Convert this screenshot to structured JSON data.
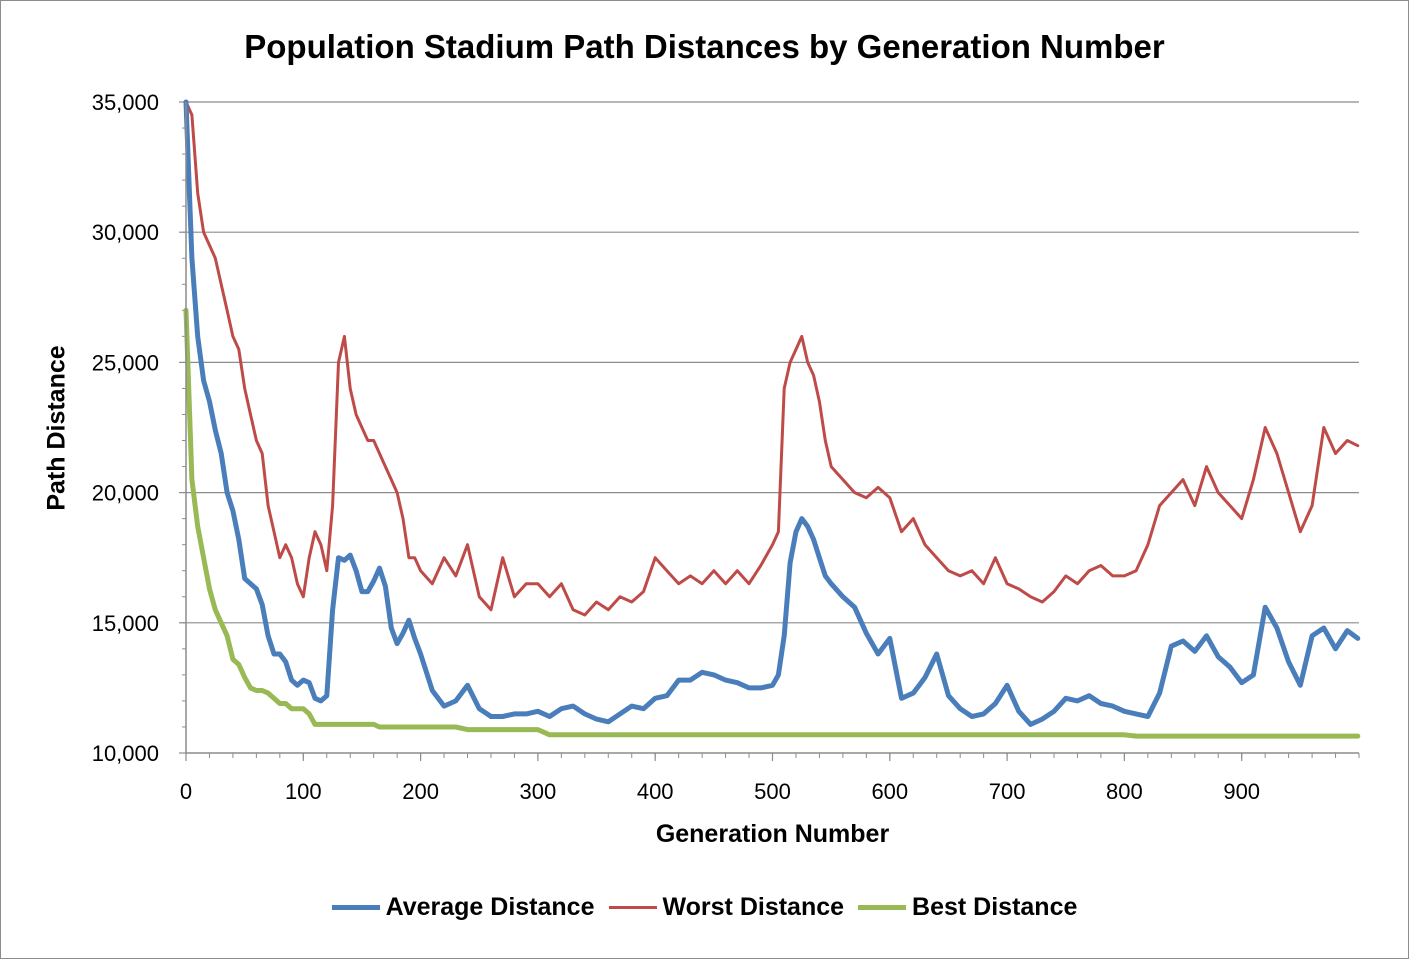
{
  "chart_data": {
    "type": "line",
    "title": "Population Stadium Path Distances by Generation Number",
    "xlabel": "Generation Number",
    "ylabel": "Path Distance",
    "xlim": [
      0,
      1000
    ],
    "ylim": [
      10000,
      35000
    ],
    "x_ticks": [
      0,
      100,
      200,
      300,
      400,
      500,
      600,
      700,
      800,
      900
    ],
    "x_tick_labels": [
      "0",
      "100",
      "200",
      "300",
      "400",
      "500",
      "600",
      "700",
      "800",
      "900"
    ],
    "y_ticks": [
      10000,
      15000,
      20000,
      25000,
      30000,
      35000
    ],
    "y_tick_labels": [
      "10,000",
      "15,000",
      "20,000",
      "25,000",
      "30,000",
      "35,000"
    ],
    "grid": "horizontal",
    "legend_position": "bottom",
    "x": [
      0,
      5,
      10,
      15,
      20,
      25,
      30,
      35,
      40,
      45,
      50,
      55,
      60,
      65,
      70,
      75,
      80,
      85,
      90,
      95,
      100,
      105,
      110,
      115,
      120,
      125,
      130,
      135,
      140,
      145,
      150,
      155,
      160,
      165,
      170,
      175,
      180,
      185,
      190,
      195,
      200,
      210,
      220,
      230,
      240,
      250,
      260,
      270,
      280,
      290,
      300,
      310,
      320,
      330,
      340,
      350,
      360,
      370,
      380,
      390,
      400,
      410,
      420,
      430,
      440,
      450,
      460,
      470,
      480,
      490,
      500,
      505,
      510,
      515,
      520,
      525,
      530,
      535,
      540,
      545,
      550,
      560,
      570,
      580,
      590,
      600,
      610,
      620,
      630,
      640,
      650,
      660,
      670,
      680,
      690,
      700,
      710,
      720,
      730,
      740,
      750,
      760,
      770,
      780,
      790,
      800,
      810,
      820,
      830,
      840,
      850,
      860,
      870,
      880,
      890,
      900,
      910,
      920,
      930,
      940,
      950,
      960,
      970,
      980,
      990,
      999
    ],
    "series": [
      {
        "name": "Average Distance",
        "color": "#4a7ebb",
        "values": [
          35500,
          29000,
          26000,
          24300,
          23500,
          22400,
          21500,
          20000,
          19300,
          18200,
          16700,
          16500,
          16300,
          15700,
          14500,
          13800,
          13800,
          13500,
          12800,
          12600,
          12800,
          12700,
          12100,
          12000,
          12200,
          15500,
          17500,
          17400,
          17600,
          17000,
          16200,
          16200,
          16600,
          17100,
          16400,
          14800,
          14200,
          14600,
          15100,
          14400,
          13800,
          12400,
          11800,
          12000,
          12600,
          11700,
          11400,
          11400,
          11500,
          11500,
          11600,
          11400,
          11700,
          11800,
          11500,
          11300,
          11200,
          11500,
          11800,
          11700,
          12100,
          12200,
          12800,
          12800,
          13100,
          13000,
          12800,
          12700,
          12500,
          12500,
          12600,
          13000,
          14500,
          17300,
          18500,
          19000,
          18700,
          18200,
          17500,
          16800,
          16500,
          16000,
          15600,
          14600,
          13800,
          14400,
          12100,
          12300,
          12900,
          13800,
          12200,
          11700,
          11400,
          11500,
          11900,
          12600,
          11600,
          11100,
          11300,
          11600,
          12100,
          12000,
          12200,
          11900,
          11800,
          11600,
          11500,
          11400,
          12300,
          14100,
          14300,
          13900,
          14500,
          13700,
          13300,
          12700,
          13000,
          15600,
          14800,
          13500,
          12600,
          14500,
          14800,
          14000,
          14700,
          14400
        ]
      },
      {
        "name": "Worst Distance",
        "color": "#be4b48",
        "values": [
          35500,
          34500,
          31500,
          30000,
          29500,
          29000,
          28000,
          27000,
          26000,
          25500,
          24000,
          23000,
          22000,
          21500,
          19500,
          18500,
          17500,
          18000,
          17500,
          16500,
          16000,
          17500,
          18500,
          18000,
          17000,
          19500,
          25000,
          26000,
          24000,
          23000,
          22500,
          22000,
          22000,
          21500,
          21000,
          20500,
          20000,
          19000,
          17500,
          17500,
          17000,
          16500,
          17500,
          16800,
          18000,
          16000,
          15500,
          17500,
          16000,
          16500,
          16500,
          16000,
          16500,
          15500,
          15300,
          15800,
          15500,
          16000,
          15800,
          16200,
          17500,
          17000,
          16500,
          16800,
          16500,
          17000,
          16500,
          17000,
          16500,
          17200,
          18000,
          18500,
          24000,
          25000,
          25500,
          26000,
          25000,
          24500,
          23500,
          22000,
          21000,
          20500,
          20000,
          19800,
          20200,
          19800,
          18500,
          19000,
          18000,
          17500,
          17000,
          16800,
          17000,
          16500,
          17500,
          16500,
          16300,
          16000,
          15800,
          16200,
          16800,
          16500,
          17000,
          17200,
          16800,
          16800,
          17000,
          18000,
          19500,
          20000,
          20500,
          19500,
          21000,
          20000,
          19500,
          19000,
          20500,
          22500,
          21500,
          20000,
          18500,
          19500,
          22500,
          21500,
          22000,
          21800
        ]
      },
      {
        "name": "Best Distance",
        "color": "#98b954",
        "values": [
          27000,
          20500,
          18700,
          17500,
          16300,
          15500,
          15000,
          14500,
          13600,
          13400,
          12900,
          12500,
          12400,
          12400,
          12300,
          12100,
          11900,
          11900,
          11700,
          11700,
          11700,
          11500,
          11100,
          11100,
          11100,
          11100,
          11100,
          11100,
          11100,
          11100,
          11100,
          11100,
          11100,
          11000,
          11000,
          11000,
          11000,
          11000,
          11000,
          11000,
          11000,
          11000,
          11000,
          11000,
          10900,
          10900,
          10900,
          10900,
          10900,
          10900,
          10900,
          10700,
          10700,
          10700,
          10700,
          10700,
          10700,
          10700,
          10700,
          10700,
          10700,
          10700,
          10700,
          10700,
          10700,
          10700,
          10700,
          10700,
          10700,
          10700,
          10700,
          10700,
          10700,
          10700,
          10700,
          10700,
          10700,
          10700,
          10700,
          10700,
          10700,
          10700,
          10700,
          10700,
          10700,
          10700,
          10700,
          10700,
          10700,
          10700,
          10700,
          10700,
          10700,
          10700,
          10700,
          10700,
          10700,
          10700,
          10700,
          10700,
          10700,
          10700,
          10700,
          10700,
          10700,
          10700,
          10650,
          10650,
          10650,
          10650,
          10650,
          10650,
          10650,
          10650,
          10650,
          10650,
          10650,
          10650,
          10650,
          10650,
          10650,
          10650,
          10650,
          10650,
          10650,
          10650
        ]
      }
    ]
  }
}
